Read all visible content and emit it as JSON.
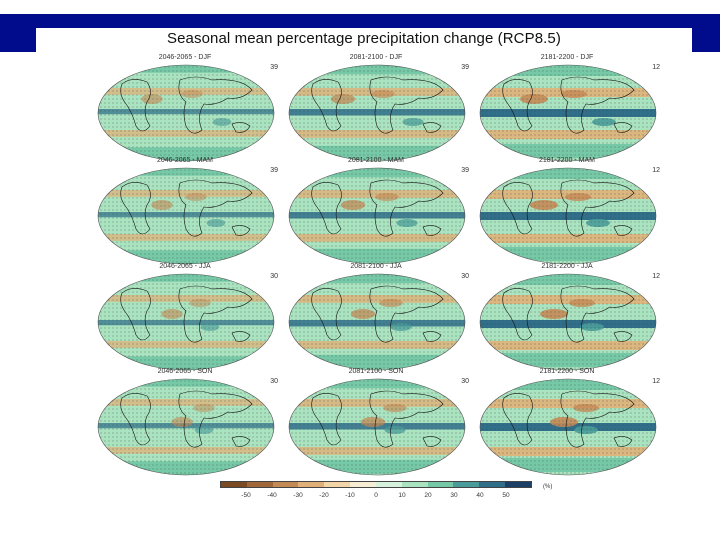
{
  "title": "Seasonal mean percentage precipitation change (RCP8.5)",
  "panels": [
    {
      "label": "2046-2065 - DJF",
      "count": "39"
    },
    {
      "label": "2081-2100 - DJF",
      "count": "39"
    },
    {
      "label": "2181-2200 - DJF",
      "count": "12"
    },
    {
      "label": "2046-2065 - MAM",
      "count": "39"
    },
    {
      "label": "2081-2100 - MAM",
      "count": "39"
    },
    {
      "label": "2181-2200 - MAM",
      "count": "12"
    },
    {
      "label": "2046-2065 - JJA",
      "count": "30"
    },
    {
      "label": "2081-2100 - JJA",
      "count": "30"
    },
    {
      "label": "2181-2200 - JJA",
      "count": "12"
    },
    {
      "label": "2046-2065 - SON",
      "count": "30"
    },
    {
      "label": "2081-2100 - SON",
      "count": "30"
    },
    {
      "label": "2181-2200 - SON",
      "count": "12"
    }
  ],
  "colorbar": {
    "ticks": [
      "-50",
      "-40",
      "-30",
      "-20",
      "-10",
      "0",
      "10",
      "20",
      "30",
      "40",
      "50"
    ],
    "unit": "(%)",
    "colors": [
      "#7a4a22",
      "#a0683a",
      "#c48a55",
      "#e0b078",
      "#f2d6a8",
      "#f7ecd4",
      "#d6f2dc",
      "#a9e3bf",
      "#76c9a6",
      "#4a9c9a",
      "#2f6f8a",
      "#1c3f68"
    ]
  },
  "colors": {
    "header_bar": "#000c8c",
    "map_background": "#a9e3bf",
    "ocean_wet": "#2f6f8a",
    "dry": "#e0b078"
  }
}
